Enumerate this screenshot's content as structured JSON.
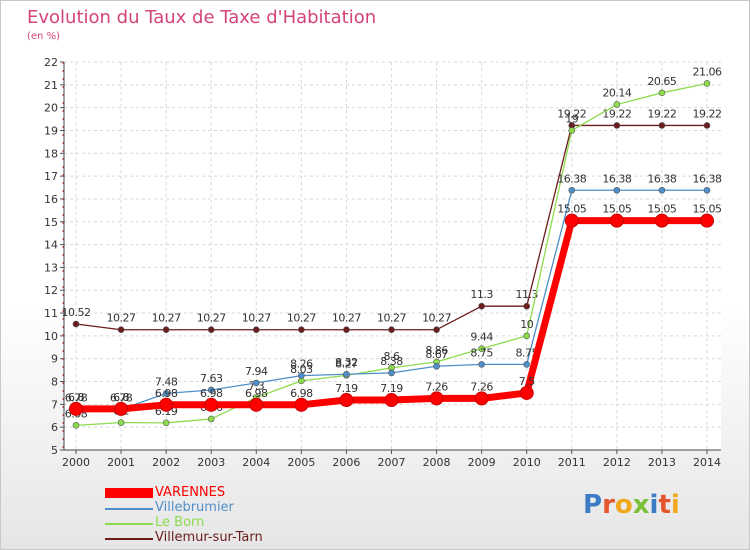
{
  "chart_data": {
    "type": "line",
    "title": "Evolution du Taux de Taxe d'Habitation",
    "unit": "(en %)",
    "ylim": [
      5,
      22
    ],
    "yticks": [
      5,
      6,
      7,
      8,
      9,
      10,
      11,
      12,
      13,
      14,
      15,
      16,
      17,
      18,
      19,
      20,
      21,
      22
    ],
    "categories": [
      "2000",
      "2001",
      "2002",
      "2003",
      "2004",
      "2005",
      "2006",
      "2007",
      "2008",
      "2009",
      "2010",
      "2011",
      "2012",
      "2013",
      "2014"
    ],
    "grid": true,
    "legend_position": "bottom-left",
    "series": [
      {
        "name": "Villemur-sur-Tarn",
        "color": "#6b1d1d",
        "values": [
          10.52,
          10.27,
          10.27,
          10.27,
          10.27,
          10.27,
          10.27,
          10.27,
          10.27,
          11.3,
          11.3,
          19.22,
          19.22,
          19.22,
          19.22
        ],
        "labels": [
          "10.52",
          "10.27",
          "10.27",
          "10.27",
          "10.27",
          "10.27",
          "10.27",
          "10.27",
          "10.27",
          "11.3",
          "11.3",
          "19.22",
          "19.22",
          "19.22",
          "19.22"
        ]
      },
      {
        "name": "Le Born",
        "color": "#8ddc4e",
        "values": [
          6.08,
          6.2,
          6.19,
          6.36,
          7.3,
          8.03,
          8.27,
          8.6,
          8.86,
          9.44,
          10,
          19.0,
          20.14,
          20.65,
          21.06
        ],
        "labels": [
          "6.08",
          "6.2",
          "6.19",
          "6.36",
          "7.3",
          "8.03",
          "8.27",
          "8.6",
          "8.86",
          "9.44",
          "10",
          "19",
          "20.14",
          "20.65",
          "21.06"
        ]
      },
      {
        "name": "Villebrumier",
        "color": "#4f8fc9",
        "values": [
          6.78,
          6.78,
          7.48,
          7.63,
          7.94,
          8.26,
          8.32,
          8.38,
          8.67,
          8.75,
          8.75,
          16.38,
          16.38,
          16.38,
          16.38
        ],
        "labels": [
          "6.78",
          "6.78",
          "7.48",
          "7.63",
          "7.94",
          "8.26",
          "8.32",
          "8.38",
          "8.67",
          "8.75",
          "8.75",
          "16.38",
          "16.38",
          "16.38",
          "16.38"
        ]
      },
      {
        "name": "VARENNES",
        "color": "#ff0000",
        "values": [
          6.8,
          6.8,
          6.98,
          6.98,
          6.98,
          6.98,
          7.19,
          7.19,
          7.26,
          7.26,
          7.5,
          15.05,
          15.05,
          15.05,
          15.05
        ],
        "labels": [
          "6.8",
          "6.8",
          "6.98",
          "6.98",
          "6.98",
          "6.98",
          "7.19",
          "7.19",
          "7.26",
          "7.26",
          "7.5",
          "15.05",
          "15.05",
          "15.05",
          "15.05"
        ]
      }
    ],
    "legend": [
      {
        "name": "VARENNES",
        "color": "#ff0000"
      },
      {
        "name": "Villebrumier",
        "color": "#4f8fc9"
      },
      {
        "name": "Le Born",
        "color": "#8ddc4e"
      },
      {
        "name": "Villemur-sur-Tarn",
        "color": "#6b1d1d"
      }
    ]
  },
  "logo": {
    "text": "Proxiti",
    "colors": [
      "#3b7cc4",
      "#e4572e",
      "#f0a81c",
      "#7bbf3a",
      "#3b7cc4",
      "#e4572e",
      "#f0a81c"
    ]
  }
}
